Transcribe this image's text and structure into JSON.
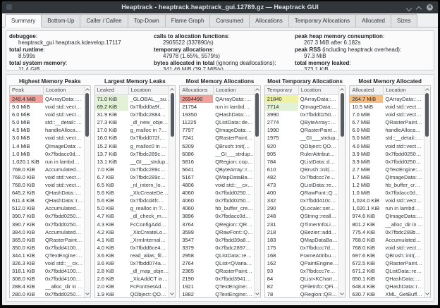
{
  "window": {
    "title": "Heaptrack - heaptrack.heaptrack_gui.12789.gz — Heaptrack GUI"
  },
  "tabs": [
    {
      "label": "Summary",
      "active": true
    },
    {
      "label": "Bottom-Up",
      "active": false
    },
    {
      "label": "Caller / Callee",
      "active": false
    },
    {
      "label": "Top-Down",
      "active": false
    },
    {
      "label": "Flame Graph",
      "active": false
    },
    {
      "label": "Consumed",
      "active": false
    },
    {
      "label": "Allocations",
      "active": false
    },
    {
      "label": "Temporary Allocations",
      "active": false
    },
    {
      "label": "Allocated",
      "active": false
    },
    {
      "label": "Sizes",
      "active": false
    }
  ],
  "summary": {
    "columns": [
      [
        {
          "label": "debuggee",
          "note": "",
          "value": "heaptrack_gui heaptrack.kdevelop.17117"
        },
        {
          "label": "total runtime",
          "note": "",
          "value": "8.599s"
        },
        {
          "label": "total system memory",
          "note": "",
          "value": "11.4 GiB"
        }
      ],
      [
        {
          "label": "calls to allocation functions",
          "note": "",
          "value": "2905522 (337890/s)"
        },
        {
          "label": "temporary allocations",
          "note": "",
          "value": "47978 (1.65%, 5579/s)"
        },
        {
          "label": "bytes allocated in total",
          "note": " (ignoring deallocations)",
          "value": "341.46 MiB (39.7 MiB/s)"
        }
      ],
      [
        {
          "label": "peak heap memory consumption",
          "note": "",
          "value": "267.3 MiB after 6.182s"
        },
        {
          "label": "peak RSS",
          "note": " (including heaptrack overhead)",
          "value": "97.3 MiB"
        },
        {
          "label": "total memory leaked",
          "note": "",
          "value": "373.1 KiB"
        }
      ]
    ]
  },
  "colors": {
    "red": "#f2a29a",
    "green": "#e3f2d6",
    "yellow": "#eff1a3",
    "orange": "#f6bd80"
  },
  "panels": [
    {
      "title": "Highest Memory Peaks",
      "columns": [
        "Peak",
        "Location"
      ],
      "rows": [
        {
          "v": "249.4 MiB",
          "loc": "QArrayData::…",
          "hl": "red"
        },
        {
          "v": "9.0 MiB",
          "loc": "void std::vect…"
        },
        {
          "v": "6.0 MiB",
          "loc": "void std::vect…"
        },
        {
          "v": "5.0 MiB",
          "loc": "std::__detail::…"
        },
        {
          "v": "4.5 MiB",
          "loc": "handleAlloca…"
        },
        {
          "v": "3.0 MiB",
          "loc": "void std::vect…"
        },
        {
          "v": "1.4 MiB",
          "loc": "QImageData:…"
        },
        {
          "v": "1.0 MiB",
          "loc": "0x7fbdacc0d…"
        },
        {
          "v": "1,020.1 KiB",
          "loc": "run in lambd…"
        },
        {
          "v": "768.0 KiB",
          "loc": "Accumulated…"
        },
        {
          "v": "768.0 KiB",
          "loc": "void std::vect…"
        },
        {
          "v": "768.0 KiB",
          "loc": "void std::vect…"
        },
        {
          "v": "645.2 KiB",
          "loc": "QHashData::…"
        },
        {
          "v": "611.4 KiB",
          "loc": "QHashData::r…"
        },
        {
          "v": "512.0 KiB",
          "loc": "Accumulated…"
        },
        {
          "v": "390.7 KiB",
          "loc": "0x7fbdd0250…"
        },
        {
          "v": "390.7 KiB",
          "loc": "0x7fbdd0250…"
        },
        {
          "v": "384.0 KiB",
          "loc": "Accumulated…"
        },
        {
          "v": "365.0 KiB",
          "loc": "QRasterPaint…"
        },
        {
          "v": "350.0 KiB",
          "loc": "0x7fbdd4100…"
        },
        {
          "v": "344.1 KiB",
          "loc": "QTextEngine:…"
        },
        {
          "v": "326.3 KiB",
          "loc": "void std::__cx…"
        },
        {
          "v": "318.1 KiB",
          "loc": "0x7fbdd4100…"
        },
        {
          "v": "308.0 KiB",
          "loc": "0x7fbdd4100…"
        },
        {
          "v": "288.4 KiB",
          "loc": "__alloc_dir in …"
        },
        {
          "v": "280.0 KiB",
          "loc": "0x7fbdd0250…"
        }
      ]
    },
    {
      "title": "Largest Memory Leaks",
      "columns": [
        "Leaked",
        "Location"
      ],
      "rows": [
        {
          "v": "71.0 KiB",
          "loc": "_GLOBAL__su…",
          "hl": "green"
        },
        {
          "v": "69.2 KiB",
          "loc": "0x7fbdd0a9f…",
          "hl": "green"
        },
        {
          "v": "31.9 KiB",
          "loc": "0x7fbdc2884…"
        },
        {
          "v": "27.3 KiB",
          "loc": "_dl_new_obje…"
        },
        {
          "v": "17.0 KiB",
          "loc": "g_malloc in ?…"
        },
        {
          "v": "16.0 KiB",
          "loc": "0x7fbdd072f…"
        },
        {
          "v": "15.2 KiB",
          "loc": "g_malloc0 in …"
        },
        {
          "v": "13.7 KiB",
          "loc": "0x7fbdc289c…"
        },
        {
          "v": "13.1 KiB",
          "loc": "__GI___strdup…"
        },
        {
          "v": "7.0 KiB",
          "loc": "0x7fbdc289c…"
        },
        {
          "v": "6.7 KiB",
          "loc": "0x7fbdc289c…"
        },
        {
          "v": "6.5 KiB",
          "loc": "_nl_intern_lo…"
        },
        {
          "v": "5.6 KiB",
          "loc": "_XlcCreateDe…"
        },
        {
          "v": "5.6 KiB",
          "loc": "0x7fbdcd4fc…"
        },
        {
          "v": "5.0 KiB",
          "loc": "g_realloc in ?…"
        },
        {
          "v": "4.7 KiB",
          "loc": "_dl_check_m…"
        },
        {
          "v": "4.3 KiB",
          "loc": "FcConfigAdd…"
        },
        {
          "v": "4.2 KiB",
          "loc": "_XlcCreateLo…"
        },
        {
          "v": "4.1 KiB",
          "loc": "_XrmInternal…"
        },
        {
          "v": "4.0 KiB",
          "loc": "0x7fbdd6ce4…"
        },
        {
          "v": "3.6 KiB",
          "loc": "read_alias_fil…"
        },
        {
          "v": "3.6 KiB",
          "loc": "0x7fbdd074a…"
        },
        {
          "v": "2.8 KiB",
          "loc": "_dl_map_obje…"
        },
        {
          "v": "2.6 KiB",
          "loc": "_XlcAddCT in…"
        },
        {
          "v": "2.0 KiB",
          "loc": "FcFontSetAd…"
        },
        {
          "v": "1.9 KiB",
          "loc": "QObject::QO…"
        }
      ]
    },
    {
      "title": "Most Memory Allocations",
      "columns": [
        "Allocations",
        "Location"
      ],
      "rows": [
        {
          "v": "2694490",
          "loc": "QArrayData::…",
          "hl": "red"
        },
        {
          "v": "21754",
          "loc": "run in lambd…"
        },
        {
          "v": "19350",
          "loc": "QHashData::…"
        },
        {
          "v": "11225",
          "loc": "QListData::de…"
        },
        {
          "v": "7797",
          "loc": "QImageData:…"
        },
        {
          "v": "7241",
          "loc": "QRasterPaint…"
        },
        {
          "v": "6209",
          "loc": "QBrush::init(…"
        },
        {
          "v": "6086",
          "loc": "__GI___strdup…"
        },
        {
          "v": "5816",
          "loc": "QRegion::cop…"
        },
        {
          "v": "5641",
          "loc": "QByteArray::r…"
        },
        {
          "v": "5167",
          "loc": "QMapDataBa…"
        },
        {
          "v": "4806",
          "loc": "void std::__cx…"
        },
        {
          "v": "4060",
          "loc": "0x7fbdd0250…"
        },
        {
          "v": "4060",
          "loc": "0x7fbdd0250…"
        },
        {
          "v": "4060",
          "loc": "hb_buffer_cre…"
        },
        {
          "v": "3896",
          "loc": "0x7fbdacc0d…"
        },
        {
          "v": "3764",
          "loc": "QRegion::QR…"
        },
        {
          "v": "3599",
          "loc": "QRawFont::Q…"
        },
        {
          "v": "3547",
          "loc": "0x7fbdd39a8…"
        },
        {
          "v": "3379",
          "loc": "0x7fbdc2897…"
        },
        {
          "v": "2958",
          "loc": "QListData::re…"
        },
        {
          "v": "2764",
          "loc": "QList<QVaria…"
        },
        {
          "v": "2365",
          "loc": "QRasterPaint…"
        },
        {
          "v": "2190",
          "loc": "0x7fbdd3941…"
        },
        {
          "v": "1921",
          "loc": "QTextEngine:…"
        },
        {
          "v": "1882",
          "loc": "QTextEngine:…"
        }
      ]
    },
    {
      "title": "Most Temporary Allocations",
      "columns": [
        "Temporary",
        "Location"
      ],
      "rows": [
        {
          "v": "21840",
          "loc": "QArrayData::…",
          "hl": "yellow"
        },
        {
          "v": "7714",
          "loc": "QImageData:…",
          "hl": "green"
        },
        {
          "v": "3990",
          "loc": "0x7fbdd0250…"
        },
        {
          "v": "2774",
          "loc": "QByteArray::…"
        },
        {
          "v": "1990",
          "loc": "QRasterPaint…"
        },
        {
          "v": "1975",
          "loc": "__GI___strdup…"
        },
        {
          "v": "920",
          "loc": "QObject::QO…"
        },
        {
          "v": "905",
          "loc": "RulerAttribut…"
        },
        {
          "v": "784",
          "loc": "QListData::d…"
        },
        {
          "v": "610",
          "loc": "QBrush::init(…"
        },
        {
          "v": "482",
          "loc": "0x7fbdccc7e…"
        },
        {
          "v": "473",
          "loc": "QListData::re…"
        },
        {
          "v": "400",
          "loc": "QRawFont::Q…"
        },
        {
          "v": "332",
          "loc": "0x7fbdd410c…"
        },
        {
          "v": "290",
          "loc": "QLocale::set…"
        },
        {
          "v": "248",
          "loc": "QString::reall…"
        },
        {
          "v": "231",
          "loc": "QTimerInfoLi…"
        },
        {
          "v": "218",
          "loc": "QBezier::add…"
        },
        {
          "v": "183",
          "loc": "QMapDataBa…"
        },
        {
          "v": "175",
          "loc": "0x7fbdccc7d…"
        },
        {
          "v": "168",
          "loc": "FrameAttribu…"
        },
        {
          "v": "162",
          "loc": "QPaintEngine…"
        },
        {
          "v": "93",
          "loc": "0x7fbdccc7e…"
        },
        {
          "v": "84",
          "loc": "QList<KChart…"
        },
        {
          "v": "82",
          "loc": "QFileInfo::QFi…"
        },
        {
          "v": "78",
          "loc": "QRegion::QR…"
        }
      ]
    },
    {
      "title": "Most Memory Allocated",
      "columns": [
        "Allocated",
        "Location"
      ],
      "rows": [
        {
          "v": "264.7 MiB",
          "loc": "QArrayData::…",
          "hl": "orange"
        },
        {
          "v": "10.5 MiB",
          "loc": "void std::vect…"
        },
        {
          "v": "7.0 MiB",
          "loc": "void std::vect…"
        },
        {
          "v": "6.7 MiB",
          "loc": "QRasterPaint…"
        },
        {
          "v": "6.0 MiB",
          "loc": "handleAlloca…"
        },
        {
          "v": "5.0 MiB",
          "loc": "std::__detail::…"
        },
        {
          "v": "4.0 MiB",
          "loc": "void std::vect…"
        },
        {
          "v": "3.9 MiB",
          "loc": "0x7fbdd0250…"
        },
        {
          "v": "3.9 MiB",
          "loc": "0x7fbdd0250…"
        },
        {
          "v": "2.7 MiB",
          "loc": "QTextEngine:…"
        },
        {
          "v": "1.7 MiB",
          "loc": "QImageData:…"
        },
        {
          "v": "1.2 MiB",
          "loc": "hb_buffer_cr…"
        },
        {
          "v": "1.0 MiB",
          "loc": "0x7fbdacc0d…"
        },
        {
          "v": "1,024.0 KiB",
          "loc": "void std::vect…"
        },
        {
          "v": "1,020.1 KiB",
          "loc": "run in lambd…"
        },
        {
          "v": "974.6 KiB",
          "loc": "QImageData:…"
        },
        {
          "v": "801.2 KiB",
          "loc": "__alloc_dir in …"
        },
        {
          "v": "775.4 KiB",
          "loc": "0x7fbdc289b…"
        },
        {
          "v": "768.0 KiB",
          "loc": "Accumulated…"
        },
        {
          "v": "768.0 KiB",
          "loc": "void std::vect…"
        },
        {
          "v": "697.6 KiB",
          "loc": "QBrush::init(…"
        },
        {
          "v": "672.5 KiB",
          "loc": "QRasterPaint…"
        },
        {
          "v": "671.2 KiB",
          "loc": "QListData::re…"
        },
        {
          "v": "650.1 KiB",
          "loc": "QHashData::…"
        },
        {
          "v": "648.4 KiB",
          "loc": "QHashData::r…"
        },
        {
          "v": "630.7 KiB",
          "loc": "XML_GetBuff…"
        }
      ]
    }
  ]
}
